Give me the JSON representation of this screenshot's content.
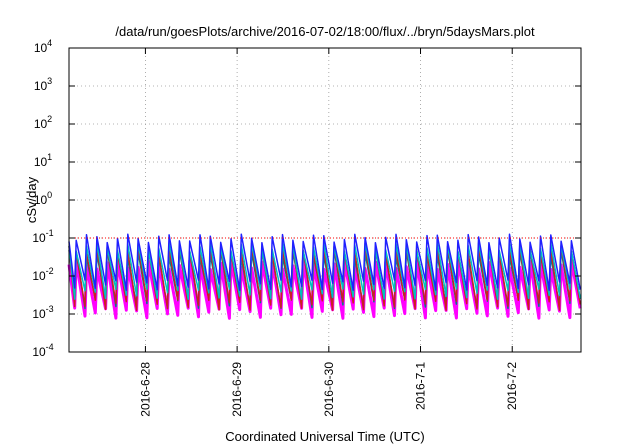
{
  "chart_data": {
    "type": "line",
    "title": "/data/run/goesPlots/archive/2016-07-02/18:00/flux/../bryn/5daysMars.plot",
    "xlabel": "Coordinated Universal Time (UTC)",
    "ylabel": "cSv/day",
    "yscale": "log",
    "ylim": [
      0.0001,
      10000
    ],
    "xlim": [
      "2016-06-27T04:00",
      "2016-07-02T18:00"
    ],
    "grid": true,
    "legend": "none",
    "y_ticks": [
      {
        "base": "10",
        "exp": "-4"
      },
      {
        "base": "10",
        "exp": "-3"
      },
      {
        "base": "10",
        "exp": "-2"
      },
      {
        "base": "10",
        "exp": "-1"
      },
      {
        "base": "10",
        "exp": "0"
      },
      {
        "base": "10",
        "exp": "1"
      },
      {
        "base": "10",
        "exp": "2"
      },
      {
        "base": "10",
        "exp": "3"
      },
      {
        "base": "10",
        "exp": "4"
      }
    ],
    "x_ticks": [
      {
        "date": "2016-06-28T00:00",
        "label": "2016-6-28"
      },
      {
        "date": "2016-06-29T00:00",
        "label": "2016-6-29"
      },
      {
        "date": "2016-06-30T00:00",
        "label": "2016-6-30"
      },
      {
        "date": "2016-07-01T00:00",
        "label": "2016-7-1"
      },
      {
        "date": "2016-07-02T00:00",
        "label": "2016-7-2"
      }
    ],
    "cycle_hours": 2.7,
    "series": [
      {
        "color": "#ff00ff",
        "peak": 0.02,
        "trough": 0.0011
      },
      {
        "color": "#008080",
        "peak": 0.04,
        "trough": 0.002
      },
      {
        "color": "#cc2020",
        "peak": 0.05,
        "trough": 0.0018
      },
      {
        "color": "#00c0c0",
        "peak": 0.06,
        "trough": 0.0035
      },
      {
        "color": "#2020ff",
        "peak": 0.1,
        "trough": 0.006
      }
    ],
    "threshold_line": {
      "color": "#ff0000",
      "value": 0.1
    }
  }
}
